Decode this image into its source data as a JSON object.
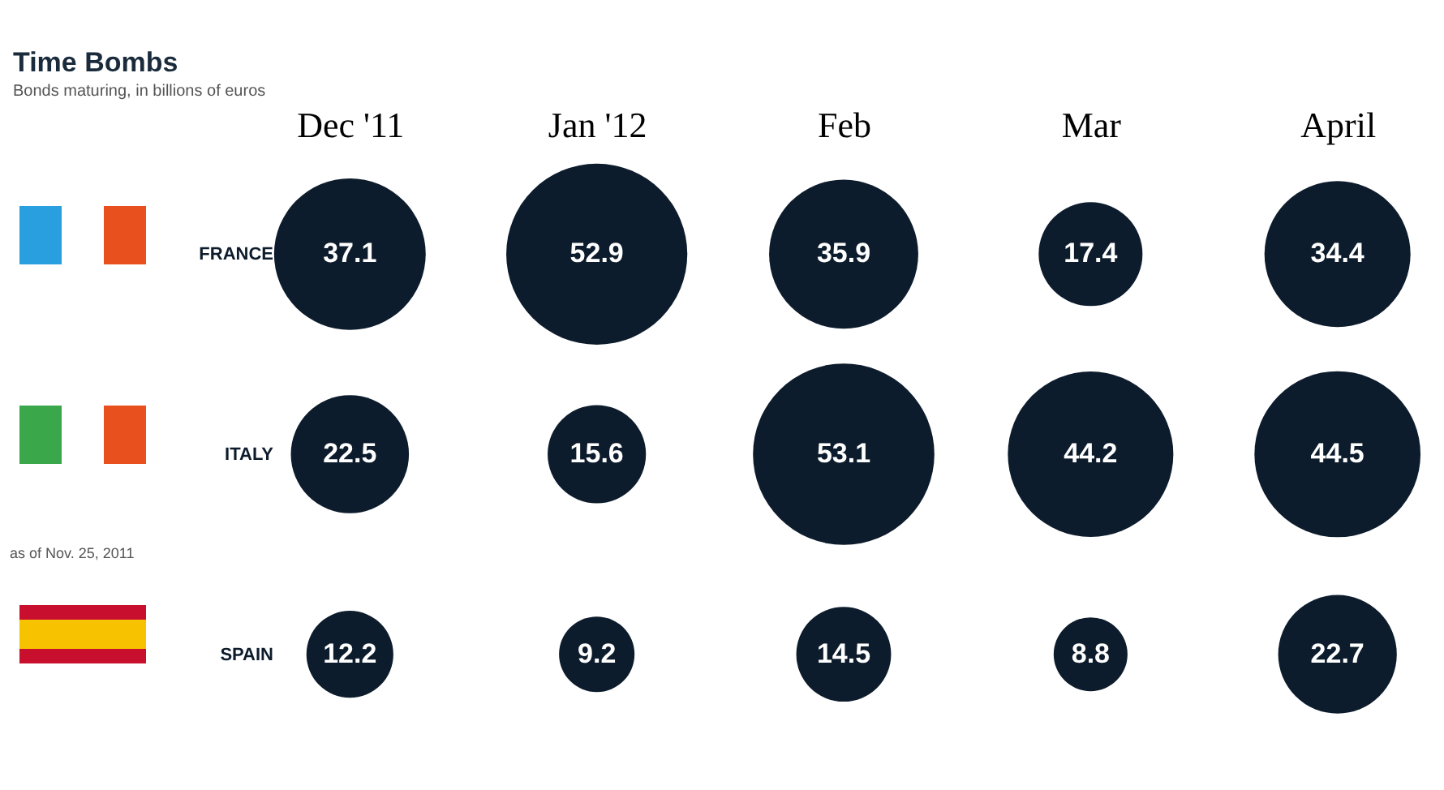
{
  "chart_data": {
    "type": "other",
    "title": "Time Bombs",
    "subtitle": "Bonds maturing, in billions of euros",
    "categories": [
      "Dec '11",
      "Jan '12",
      "Feb",
      "Mar",
      "April"
    ],
    "series": [
      {
        "name": "FRANCE",
        "color": "#0d1c2c",
        "values": [
          37.1,
          52.9,
          35.9,
          17.4,
          34.4
        ]
      },
      {
        "name": "ITALY",
        "color": "#0d1c2c",
        "values": [
          22.5,
          15.6,
          53.1,
          44.2,
          44.5
        ]
      },
      {
        "name": "SPAIN",
        "color": "#0d1c2c",
        "values": [
          12.2,
          9.2,
          14.5,
          8.8,
          22.7
        ]
      }
    ],
    "data_labels": true,
    "annotations": [
      "as of Nov. 25, 2011"
    ]
  }
}
